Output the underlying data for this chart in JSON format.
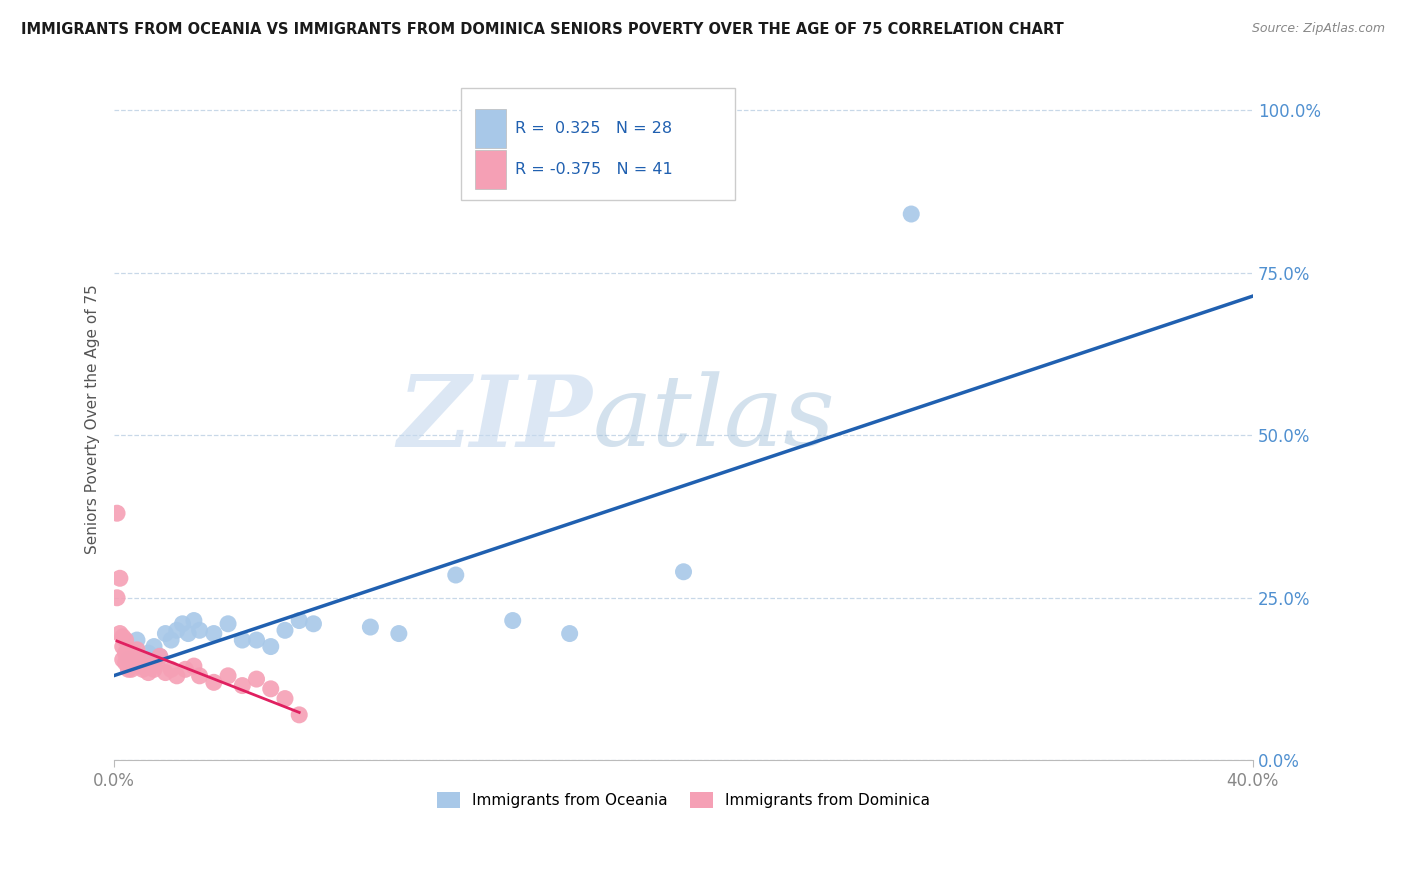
{
  "title": "IMMIGRANTS FROM OCEANIA VS IMMIGRANTS FROM DOMINICA SENIORS POVERTY OVER THE AGE OF 75 CORRELATION CHART",
  "source": "Source: ZipAtlas.com",
  "ylabel": "Seniors Poverty Over the Age of 75",
  "ytick_values": [
    0.0,
    0.25,
    0.5,
    0.75,
    1.0
  ],
  "xlim": [
    0.0,
    0.4
  ],
  "ylim": [
    0.0,
    1.05
  ],
  "legend1_label": "Immigrants from Oceania",
  "legend2_label": "Immigrants from Dominica",
  "R1": 0.325,
  "N1": 28,
  "R2": -0.375,
  "N2": 41,
  "color_oceania": "#a8c8e8",
  "color_dominica": "#f5a0b5",
  "line_color_oceania": "#2060b0",
  "line_color_dominica": "#e02060",
  "watermark_zip": "ZIP",
  "watermark_atlas": "atlas",
  "background_color": "#ffffff",
  "grid_color": "#c8d8e8",
  "title_color": "#1a1a1a",
  "source_color": "#888888",
  "ytick_color": "#5090d0",
  "xtick_color": "#888888",
  "ylabel_color": "#555555",
  "scatter_oceania_x": [
    0.005,
    0.008,
    0.01,
    0.012,
    0.014,
    0.016,
    0.018,
    0.02,
    0.022,
    0.024,
    0.026,
    0.028,
    0.03,
    0.035,
    0.04,
    0.045,
    0.05,
    0.055,
    0.06,
    0.065,
    0.07,
    0.09,
    0.1,
    0.12,
    0.14,
    0.16,
    0.2,
    0.28
  ],
  "scatter_oceania_y": [
    0.155,
    0.185,
    0.155,
    0.165,
    0.175,
    0.16,
    0.195,
    0.185,
    0.2,
    0.21,
    0.195,
    0.215,
    0.2,
    0.195,
    0.21,
    0.185,
    0.185,
    0.175,
    0.2,
    0.215,
    0.21,
    0.205,
    0.195,
    0.285,
    0.215,
    0.195,
    0.29,
    0.84
  ],
  "scatter_dominica_x": [
    0.001,
    0.001,
    0.002,
    0.002,
    0.003,
    0.003,
    0.003,
    0.004,
    0.004,
    0.004,
    0.005,
    0.005,
    0.005,
    0.006,
    0.006,
    0.007,
    0.007,
    0.008,
    0.008,
    0.009,
    0.01,
    0.01,
    0.011,
    0.012,
    0.013,
    0.014,
    0.015,
    0.016,
    0.018,
    0.02,
    0.022,
    0.025,
    0.028,
    0.03,
    0.035,
    0.04,
    0.045,
    0.05,
    0.055,
    0.06,
    0.065
  ],
  "scatter_dominica_y": [
    0.38,
    0.25,
    0.28,
    0.195,
    0.175,
    0.155,
    0.19,
    0.185,
    0.165,
    0.15,
    0.16,
    0.14,
    0.15,
    0.155,
    0.14,
    0.15,
    0.165,
    0.16,
    0.17,
    0.145,
    0.145,
    0.14,
    0.155,
    0.135,
    0.145,
    0.14,
    0.15,
    0.16,
    0.135,
    0.14,
    0.13,
    0.14,
    0.145,
    0.13,
    0.12,
    0.13,
    0.115,
    0.125,
    0.11,
    0.095,
    0.07
  ]
}
